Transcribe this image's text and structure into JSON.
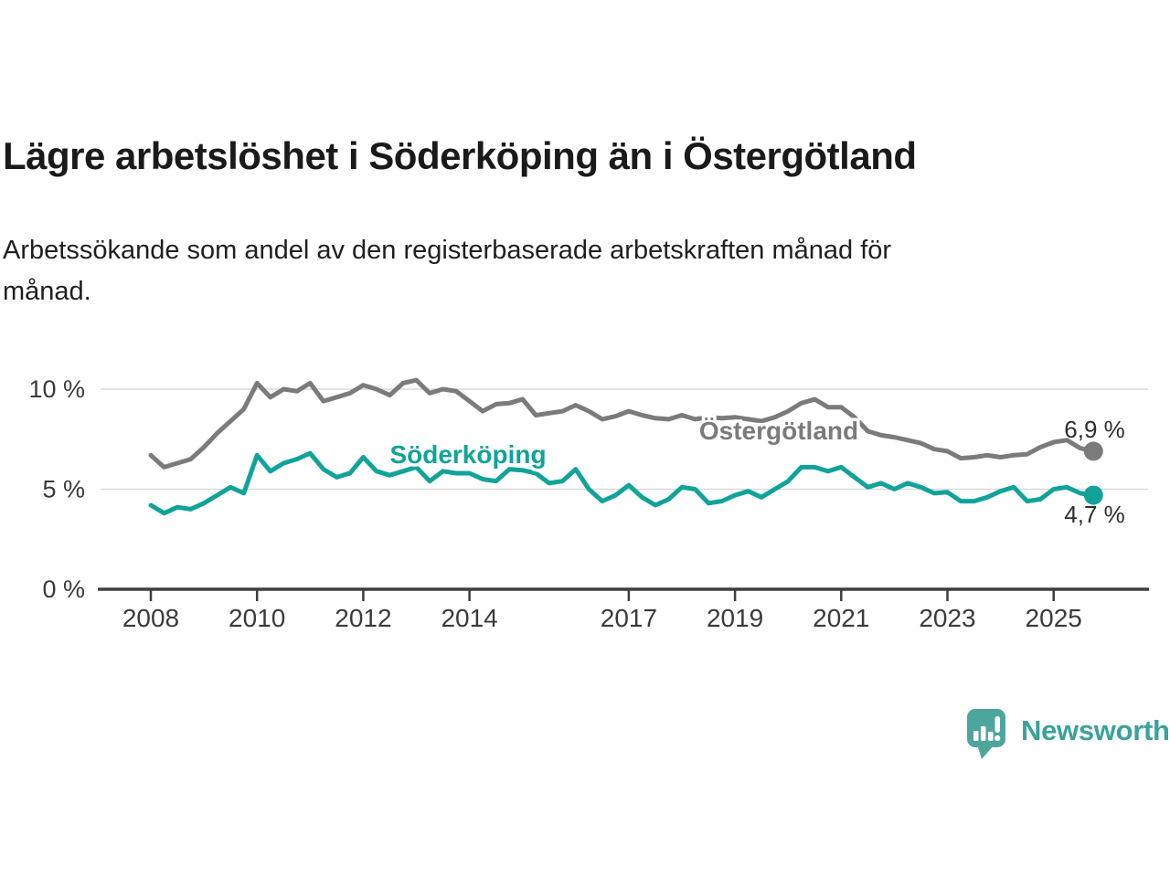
{
  "header": {
    "title": "Lägre arbetslöshet i Söderköping än i Östergötland",
    "subtitle_line1": "Arbetssökande som andel av den registerbaserade arbetskraften månad för",
    "subtitle_line2": "månad."
  },
  "branding": {
    "logo_text": "Newsworthy",
    "logo_icon": "speech-bubble-bar-chart-icon",
    "logo_color": "#4da69e"
  },
  "chart_data": {
    "type": "line",
    "title": "",
    "xlabel": "",
    "ylabel": "",
    "y_unit": "%",
    "x_unit": "year (monthly series, sampled quarterly)",
    "ylim": [
      0,
      11
    ],
    "xlim": [
      2007.6,
      2026.2
    ],
    "grid": "horizontal",
    "legend_position": "inline-labels",
    "axis_color": "#3e3e3e",
    "gridline_color": "#dadada",
    "tick_label_color": "#3b3b3b",
    "value_label_color": "#2e2e2e",
    "y_ticks": [
      {
        "value": 0,
        "label": "0 %"
      },
      {
        "value": 5,
        "label": "5 %"
      },
      {
        "value": 10,
        "label": "10 %"
      }
    ],
    "x_ticks": [
      {
        "value": 2008,
        "label": "2008"
      },
      {
        "value": 2010,
        "label": "2010"
      },
      {
        "value": 2012,
        "label": "2012"
      },
      {
        "value": 2014,
        "label": "2014"
      },
      {
        "value": 2017,
        "label": "2017"
      },
      {
        "value": 2019,
        "label": "2019"
      },
      {
        "value": 2021,
        "label": "2021"
      },
      {
        "value": 2023,
        "label": "2023"
      },
      {
        "value": 2025,
        "label": "2025"
      }
    ],
    "series": [
      {
        "name": "Östergötland",
        "color": "#7b7b7b",
        "end_value": 6.9,
        "end_label": "6,9 %",
        "x": [
          2008.0,
          2008.25,
          2008.5,
          2008.75,
          2009.0,
          2009.25,
          2009.5,
          2009.75,
          2010.0,
          2010.25,
          2010.5,
          2010.75,
          2011.0,
          2011.25,
          2011.5,
          2011.75,
          2012.0,
          2012.25,
          2012.5,
          2012.75,
          2013.0,
          2013.25,
          2013.5,
          2013.75,
          2014.0,
          2014.25,
          2014.5,
          2014.75,
          2015.0,
          2015.25,
          2015.5,
          2015.75,
          2016.0,
          2016.25,
          2016.5,
          2016.75,
          2017.0,
          2017.25,
          2017.5,
          2017.75,
          2018.0,
          2018.25,
          2018.5,
          2018.75,
          2019.0,
          2019.25,
          2019.5,
          2019.75,
          2020.0,
          2020.25,
          2020.5,
          2020.75,
          2021.0,
          2021.25,
          2021.5,
          2021.75,
          2022.0,
          2022.25,
          2022.5,
          2022.75,
          2023.0,
          2023.25,
          2023.5,
          2023.75,
          2024.0,
          2024.25,
          2024.5,
          2024.75,
          2025.0,
          2025.25,
          2025.5,
          2025.75
        ],
        "values": [
          6.7,
          6.1,
          6.3,
          6.5,
          7.1,
          7.8,
          8.4,
          9.0,
          10.3,
          9.6,
          10.0,
          9.9,
          10.3,
          9.4,
          9.6,
          9.8,
          10.2,
          10.0,
          9.7,
          10.3,
          10.45,
          9.8,
          10.0,
          9.9,
          9.4,
          8.9,
          9.25,
          9.3,
          9.5,
          8.7,
          8.8,
          8.9,
          9.2,
          8.9,
          8.5,
          8.65,
          8.9,
          8.7,
          8.55,
          8.5,
          8.7,
          8.5,
          8.6,
          8.55,
          8.6,
          8.5,
          8.4,
          8.6,
          8.9,
          9.3,
          9.5,
          9.1,
          9.1,
          8.6,
          7.9,
          7.7,
          7.6,
          7.45,
          7.3,
          7.0,
          6.9,
          6.55,
          6.6,
          6.7,
          6.6,
          6.7,
          6.75,
          7.1,
          7.35,
          7.45,
          7.05,
          6.9
        ]
      },
      {
        "name": "Söderköping",
        "color": "#11a39a",
        "end_value": 4.7,
        "end_label": "4,7 %",
        "x": [
          2008.0,
          2008.25,
          2008.5,
          2008.75,
          2009.0,
          2009.25,
          2009.5,
          2009.75,
          2010.0,
          2010.25,
          2010.5,
          2010.75,
          2011.0,
          2011.25,
          2011.5,
          2011.75,
          2012.0,
          2012.25,
          2012.5,
          2012.75,
          2013.0,
          2013.25,
          2013.5,
          2013.75,
          2014.0,
          2014.25,
          2014.5,
          2014.75,
          2015.0,
          2015.25,
          2015.5,
          2015.75,
          2016.0,
          2016.25,
          2016.5,
          2016.75,
          2017.0,
          2017.25,
          2017.5,
          2017.75,
          2018.0,
          2018.25,
          2018.5,
          2018.75,
          2019.0,
          2019.25,
          2019.5,
          2019.75,
          2020.0,
          2020.25,
          2020.5,
          2020.75,
          2021.0,
          2021.25,
          2021.5,
          2021.75,
          2022.0,
          2022.25,
          2022.5,
          2022.75,
          2023.0,
          2023.25,
          2023.5,
          2023.75,
          2024.0,
          2024.25,
          2024.5,
          2024.75,
          2025.0,
          2025.25,
          2025.5,
          2025.75
        ],
        "values": [
          4.2,
          3.8,
          4.1,
          4.0,
          4.3,
          4.7,
          5.1,
          4.8,
          6.7,
          5.9,
          6.3,
          6.5,
          6.8,
          6.0,
          5.6,
          5.8,
          6.6,
          5.9,
          5.7,
          5.9,
          6.1,
          5.4,
          5.9,
          5.8,
          5.8,
          5.5,
          5.4,
          6.0,
          5.95,
          5.8,
          5.3,
          5.4,
          6.0,
          5.0,
          4.4,
          4.7,
          5.2,
          4.6,
          4.2,
          4.5,
          5.1,
          5.0,
          4.3,
          4.4,
          4.7,
          4.9,
          4.6,
          5.0,
          5.4,
          6.1,
          6.1,
          5.9,
          6.1,
          5.6,
          5.1,
          5.3,
          5.0,
          5.3,
          5.1,
          4.8,
          4.85,
          4.4,
          4.4,
          4.6,
          4.9,
          5.1,
          4.4,
          4.5,
          5.0,
          5.1,
          4.8,
          4.7
        ]
      }
    ]
  }
}
